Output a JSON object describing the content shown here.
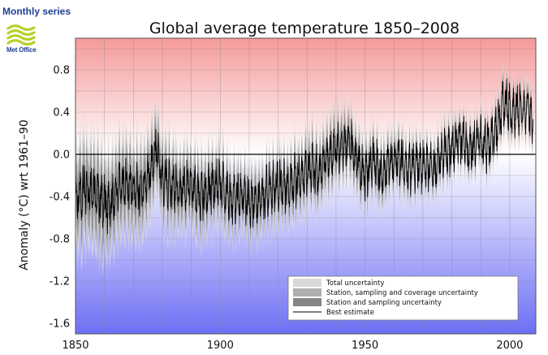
{
  "header": {
    "series_label": "Monthly series",
    "logo_text": "Met Office"
  },
  "chart_data": {
    "type": "line",
    "title": "Global average temperature 1850–2008",
    "ylabel": "Anomaly (°C) wrt 1961–90",
    "xlabel": "",
    "xlim": [
      1850,
      2009
    ],
    "ylim": [
      -1.7,
      1.1
    ],
    "x_ticks": [
      1850,
      1900,
      1950,
      2000
    ],
    "y_ticks": [
      -1.6,
      -1.2,
      -0.8,
      -0.4,
      0.0,
      0.4,
      0.8
    ],
    "y_tick_labels": [
      "-1.6",
      "-1.2",
      "-0.8",
      "-0.4",
      "0.0",
      "0.4",
      "0.8"
    ],
    "grid": true,
    "zero_line": 0.0,
    "background": {
      "warm_color": "#f59a9a",
      "cold_color": "#6d6ff5",
      "neutral_color": "#ffffff"
    },
    "legend": {
      "placement": "bottom-right",
      "entries": [
        {
          "label": "Total uncertainty",
          "color": "#d9d9d9"
        },
        {
          "label": "Station, sampling and coverage uncertainty",
          "color": "#b0b0b0"
        },
        {
          "label": "Station and sampling uncertainty",
          "color": "#858585"
        },
        {
          "label": "Best estimate",
          "color": "#000000"
        }
      ]
    },
    "series": [
      {
        "name": "Best estimate",
        "x": [
          1850,
          1853,
          1856,
          1859,
          1862,
          1865,
          1868,
          1871,
          1874,
          1877,
          1878,
          1880,
          1883,
          1886,
          1889,
          1892,
          1895,
          1898,
          1901,
          1904,
          1907,
          1910,
          1913,
          1916,
          1919,
          1922,
          1925,
          1928,
          1931,
          1934,
          1937,
          1940,
          1943,
          1944,
          1947,
          1950,
          1953,
          1956,
          1959,
          1962,
          1965,
          1968,
          1971,
          1974,
          1977,
          1980,
          1983,
          1986,
          1989,
          1992,
          1995,
          1998,
          2001,
          2004,
          2007,
          2008
        ],
        "values": [
          -0.45,
          -0.35,
          -0.3,
          -0.45,
          -0.5,
          -0.3,
          -0.3,
          -0.35,
          -0.3,
          -0.1,
          0.05,
          -0.25,
          -0.3,
          -0.35,
          -0.3,
          -0.4,
          -0.35,
          -0.3,
          -0.3,
          -0.45,
          -0.4,
          -0.45,
          -0.45,
          -0.35,
          -0.3,
          -0.3,
          -0.25,
          -0.25,
          -0.1,
          -0.15,
          -0.05,
          0.05,
          0.05,
          0.15,
          -0.05,
          -0.2,
          -0.05,
          -0.2,
          -0.05,
          -0.05,
          -0.15,
          -0.1,
          -0.1,
          -0.15,
          0.05,
          0.05,
          0.15,
          0.05,
          0.15,
          0.05,
          0.2,
          0.5,
          0.4,
          0.45,
          0.4,
          0.3
        ]
      },
      {
        "name": "Station and sampling uncertainty",
        "x": [
          1850,
          1880,
          1910,
          1940,
          1970,
          2000,
          2008
        ],
        "values": [
          0.25,
          0.18,
          0.12,
          0.15,
          0.08,
          0.08,
          0.08
        ]
      },
      {
        "name": "Station, sampling and coverage uncertainty",
        "x": [
          1850,
          1880,
          1910,
          1940,
          1970,
          2000,
          2008
        ],
        "values": [
          0.35,
          0.28,
          0.2,
          0.22,
          0.14,
          0.12,
          0.12
        ]
      },
      {
        "name": "Total uncertainty",
        "x": [
          1850,
          1880,
          1910,
          1940,
          1970,
          2000,
          2008
        ],
        "values": [
          0.5,
          0.38,
          0.28,
          0.3,
          0.2,
          0.18,
          0.18
        ]
      }
    ]
  }
}
